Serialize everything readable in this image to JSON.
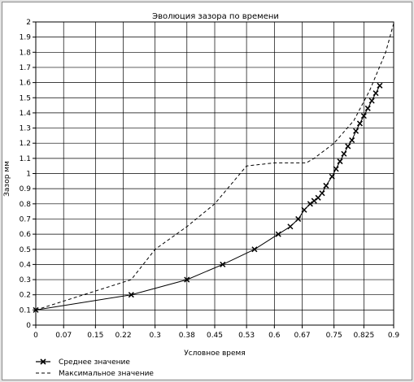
{
  "chart_data": {
    "type": "line",
    "title": "Эволюция зазора по времени",
    "xlabel": "Условное время",
    "ylabel": "Зазор мм",
    "xlim": [
      0,
      0.9
    ],
    "ylim": [
      0,
      2
    ],
    "grid": true,
    "legend_position": "bottom-left",
    "x_ticks": [
      "0",
      "0.07",
      "0.15",
      "0.22",
      "0.3",
      "0.38",
      "0.45",
      "0.53",
      "0.6",
      "0.67",
      "0.75",
      "0.825",
      "0.9"
    ],
    "y_ticks": [
      "0",
      "0.1",
      "0.2",
      "0.3",
      "0.4",
      "0.5",
      "0.6",
      "0.7",
      "0.8",
      "0.9",
      "1",
      "1.1",
      "1.2",
      "1.3",
      "1.4",
      "1.5",
      "1.6",
      "1.7",
      "1.8",
      "1.9",
      "2"
    ],
    "series": [
      {
        "name": "Среднее значение",
        "style": "solid-cross",
        "color": "#000000",
        "points": [
          [
            0,
            0.1
          ],
          [
            0.24,
            0.2
          ],
          [
            0.38,
            0.3
          ],
          [
            0.47,
            0.4
          ],
          [
            0.55,
            0.5
          ],
          [
            0.61,
            0.6
          ],
          [
            0.64,
            0.65
          ],
          [
            0.66,
            0.7
          ],
          [
            0.675,
            0.76
          ],
          [
            0.69,
            0.8
          ],
          [
            0.7,
            0.82
          ],
          [
            0.71,
            0.84
          ],
          [
            0.72,
            0.87
          ],
          [
            0.73,
            0.92
          ],
          [
            0.745,
            0.98
          ],
          [
            0.755,
            1.03
          ],
          [
            0.765,
            1.08
          ],
          [
            0.775,
            1.13
          ],
          [
            0.785,
            1.18
          ],
          [
            0.795,
            1.22
          ],
          [
            0.805,
            1.28
          ],
          [
            0.815,
            1.33
          ],
          [
            0.825,
            1.38
          ],
          [
            0.835,
            1.43
          ],
          [
            0.845,
            1.48
          ],
          [
            0.855,
            1.53
          ],
          [
            0.865,
            1.58
          ]
        ]
      },
      {
        "name": "Максимальное значение",
        "style": "dashed",
        "color": "#000000",
        "points": [
          [
            0,
            0.1
          ],
          [
            0.12,
            0.2
          ],
          [
            0.24,
            0.3
          ],
          [
            0.3,
            0.5
          ],
          [
            0.38,
            0.65
          ],
          [
            0.45,
            0.8
          ],
          [
            0.53,
            1.05
          ],
          [
            0.6,
            1.07
          ],
          [
            0.68,
            1.07
          ],
          [
            0.7,
            1.1
          ],
          [
            0.75,
            1.2
          ],
          [
            0.8,
            1.35
          ],
          [
            0.84,
            1.55
          ],
          [
            0.88,
            1.8
          ],
          [
            0.9,
            1.99
          ]
        ]
      }
    ]
  }
}
